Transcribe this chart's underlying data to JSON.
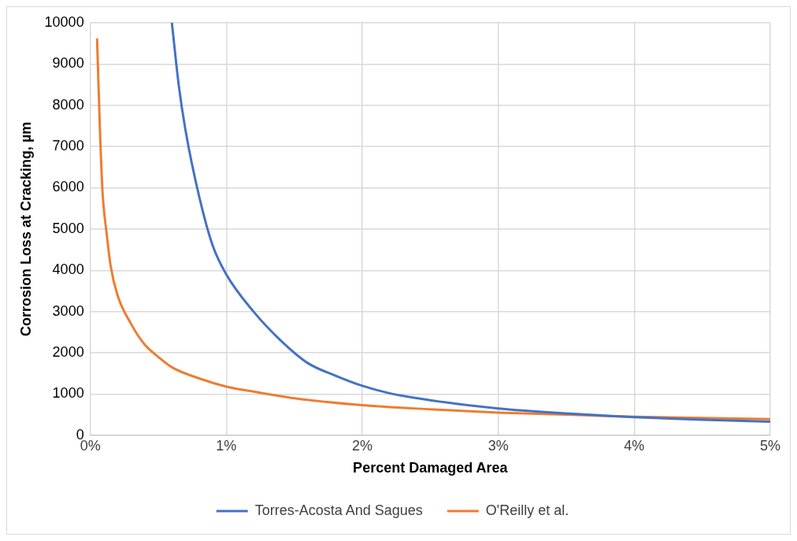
{
  "chart_data": {
    "type": "line",
    "xlabel": "Percent Damaged Area",
    "ylabel": "Corrosion Loss at Cracking, µm",
    "xlim": [
      0,
      5
    ],
    "xticks": [
      {
        "value": 0,
        "label": "0%"
      },
      {
        "value": 1,
        "label": "1%"
      },
      {
        "value": 2,
        "label": "2%"
      },
      {
        "value": 3,
        "label": "3%"
      },
      {
        "value": 4,
        "label": "4%"
      },
      {
        "value": 5,
        "label": "5%"
      }
    ],
    "ylim": [
      0,
      10000
    ],
    "yticks": [
      0,
      1000,
      2000,
      3000,
      4000,
      5000,
      6000,
      7000,
      8000,
      9000,
      10000
    ],
    "grid": true,
    "legend": "bottom",
    "marker": "none",
    "line_style": "solid",
    "series": [
      {
        "name": "Torres-Acosta And Sagues",
        "color": "#4472c4",
        "x": [
          0.6,
          0.65,
          0.7,
          0.8,
          0.9,
          1.0,
          1.2,
          1.4,
          1.6,
          1.8,
          2.0,
          2.2,
          2.5,
          3.0,
          3.5,
          4.0,
          4.5,
          5.0
        ],
        "values": [
          10000,
          8500,
          7400,
          5800,
          4600,
          3900,
          3000,
          2300,
          1750,
          1450,
          1200,
          1020,
          850,
          650,
          530,
          440,
          380,
          330
        ]
      },
      {
        "name": "O'Reilly et al.",
        "color": "#ed7d31",
        "x": [
          0.05,
          0.07,
          0.09,
          0.12,
          0.15,
          0.2,
          0.3,
          0.4,
          0.5,
          0.6,
          0.8,
          1.0,
          1.2,
          1.5,
          2.0,
          2.5,
          3.0,
          3.5,
          4.0,
          4.5,
          5.0
        ],
        "values": [
          9600,
          7500,
          5900,
          4900,
          4100,
          3400,
          2700,
          2200,
          1900,
          1650,
          1380,
          1180,
          1060,
          900,
          730,
          630,
          550,
          500,
          450,
          420,
          390
        ]
      }
    ]
  }
}
